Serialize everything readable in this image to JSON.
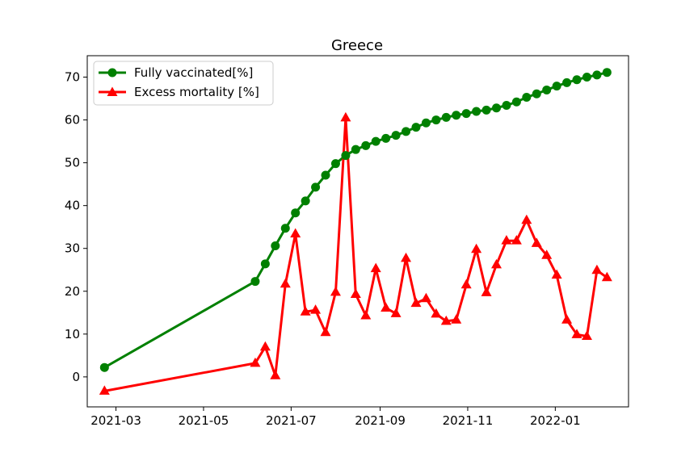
{
  "chart_data": {
    "type": "line",
    "title": "Greece",
    "xlabel": "",
    "ylabel": "",
    "x_ticks": [
      "2021-03",
      "2021-05",
      "2021-07",
      "2021-09",
      "2021-11",
      "2022-01"
    ],
    "y_ticks": [
      0,
      10,
      20,
      30,
      40,
      50,
      60,
      70
    ],
    "xlim": [
      "2021-02-09",
      "2022-02-21"
    ],
    "ylim": [
      -7,
      75
    ],
    "grid": false,
    "legend_position": "top-left",
    "series": [
      {
        "name": "Fully vaccinated[%]",
        "color": "#008000",
        "marker": "circle",
        "x": [
          "2021-02-21",
          "2021-06-06",
          "2021-06-13",
          "2021-06-20",
          "2021-06-27",
          "2021-07-04",
          "2021-07-11",
          "2021-07-18",
          "2021-07-25",
          "2021-08-01",
          "2021-08-08",
          "2021-08-15",
          "2021-08-22",
          "2021-08-29",
          "2021-09-05",
          "2021-09-12",
          "2021-09-19",
          "2021-09-26",
          "2021-10-03",
          "2021-10-10",
          "2021-10-17",
          "2021-10-24",
          "2021-10-31",
          "2021-11-07",
          "2021-11-14",
          "2021-11-21",
          "2021-11-28",
          "2021-12-05",
          "2021-12-12",
          "2021-12-19",
          "2021-12-26",
          "2022-01-02",
          "2022-01-09",
          "2022-01-16",
          "2022-01-23",
          "2022-01-30",
          "2022-02-06"
        ],
        "y": [
          2.2,
          22.3,
          26.4,
          30.6,
          34.7,
          38.3,
          41.1,
          44.3,
          47.1,
          49.8,
          51.7,
          53.1,
          54.0,
          55.0,
          55.7,
          56.4,
          57.3,
          58.3,
          59.3,
          60.0,
          60.6,
          61.1,
          61.5,
          62.0,
          62.3,
          62.8,
          63.4,
          64.2,
          65.3,
          66.1,
          67.0,
          67.9,
          68.7,
          69.4,
          70.0,
          70.5,
          71.1
        ]
      },
      {
        "name": "Excess mortality [%]",
        "color": "#ff0000",
        "marker": "triangle",
        "x": [
          "2021-02-21",
          "2021-06-06",
          "2021-06-13",
          "2021-06-20",
          "2021-06-27",
          "2021-07-04",
          "2021-07-11",
          "2021-07-18",
          "2021-07-25",
          "2021-08-01",
          "2021-08-08",
          "2021-08-15",
          "2021-08-22",
          "2021-08-29",
          "2021-09-05",
          "2021-09-12",
          "2021-09-19",
          "2021-09-26",
          "2021-10-03",
          "2021-10-10",
          "2021-10-17",
          "2021-10-24",
          "2021-10-31",
          "2021-11-07",
          "2021-11-14",
          "2021-11-21",
          "2021-11-28",
          "2021-12-05",
          "2021-12-12",
          "2021-12-19",
          "2021-12-26",
          "2022-01-02",
          "2022-01-09",
          "2022-01-16",
          "2022-01-23",
          "2022-01-30",
          "2022-02-06"
        ],
        "y": [
          -3.3,
          3.2,
          7.0,
          0.3,
          21.7,
          33.4,
          15.2,
          15.6,
          10.4,
          19.8,
          60.5,
          19.3,
          14.3,
          25.3,
          16.1,
          14.8,
          27.7,
          17.2,
          18.3,
          14.7,
          13.0,
          13.3,
          21.5,
          29.8,
          19.7,
          26.2,
          31.8,
          31.8,
          36.6,
          31.2,
          28.4,
          23.8,
          13.3,
          9.9,
          9.5,
          24.9,
          23.2
        ]
      }
    ]
  }
}
